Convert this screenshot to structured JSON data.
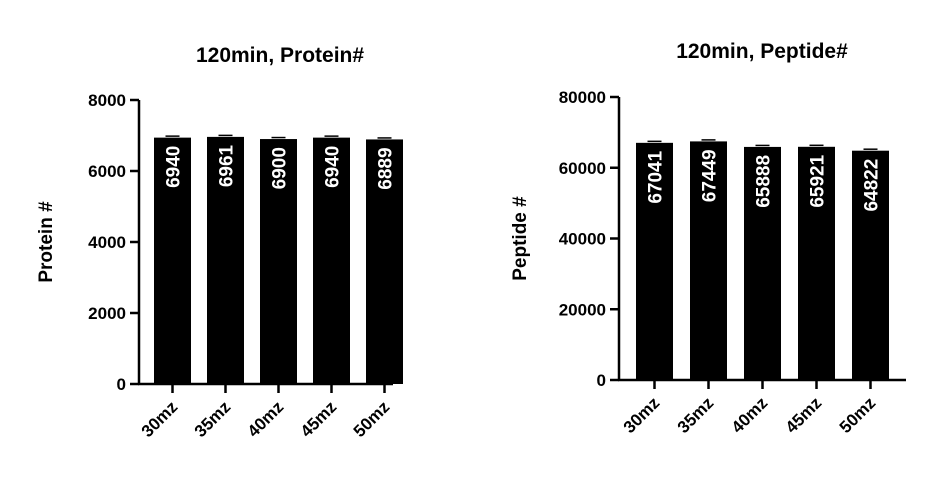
{
  "chart_data": [
    {
      "type": "bar",
      "title": "120min,  Protein#",
      "xlabel": "",
      "ylabel": "Protein #",
      "categories": [
        "30mz",
        "35mz",
        "40mz",
        "45mz",
        "50mz"
      ],
      "values": [
        6940,
        6961,
        6900,
        6940,
        6889
      ],
      "data_labels": [
        "6940",
        "6961",
        "6900",
        "6940",
        "6889"
      ],
      "ylim": [
        0,
        8000
      ],
      "yticks": [
        0,
        2000,
        4000,
        6000,
        8000
      ],
      "ytick_labels": [
        "0",
        "2000",
        "4000",
        "6000",
        "8000"
      ],
      "bar_color": "#000000",
      "label_color": "#ffffff",
      "grid": false
    },
    {
      "type": "bar",
      "title": "120min,  Peptide#",
      "xlabel": "",
      "ylabel": "Peptide #",
      "categories": [
        "30mz",
        "35mz",
        "40mz",
        "45mz",
        "50mz"
      ],
      "values": [
        67041,
        67449,
        65888,
        65921,
        64822
      ],
      "data_labels": [
        "67041",
        "67449",
        "65888",
        "65921",
        "64822"
      ],
      "ylim": [
        0,
        80000
      ],
      "yticks": [
        0,
        20000,
        40000,
        60000,
        80000
      ],
      "ytick_labels": [
        "0",
        "20000",
        "40000",
        "60000",
        "80000"
      ],
      "bar_color": "#000000",
      "label_color": "#ffffff",
      "grid": false
    }
  ]
}
